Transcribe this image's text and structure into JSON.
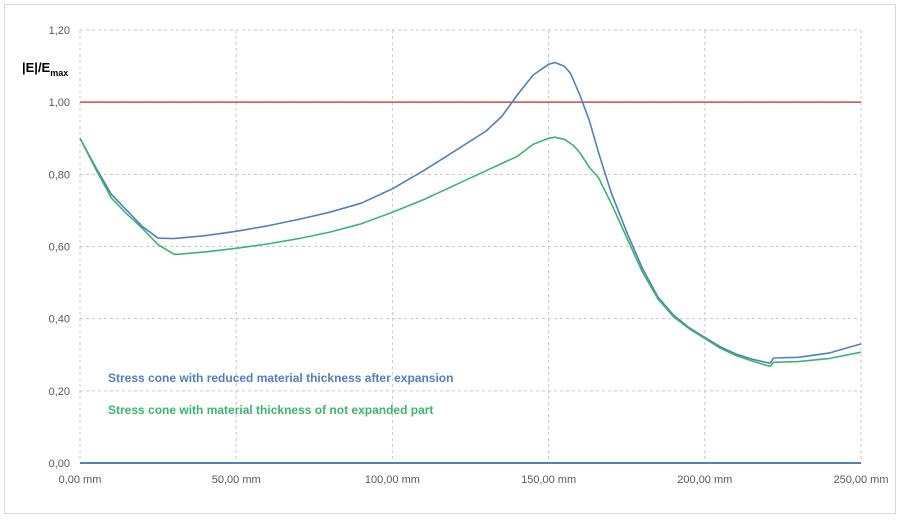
{
  "chart_data": {
    "type": "line",
    "title": "",
    "xlabel": "",
    "ylabel_main": "|E|/E",
    "ylabel_sub": "max",
    "xlim": [
      0,
      250
    ],
    "ylim": [
      0,
      1.2
    ],
    "x_ticks": [
      0,
      50,
      100,
      150,
      200,
      250
    ],
    "x_tick_labels": [
      "0,00 mm",
      "50,00 mm",
      "100,00 mm",
      "150,00 mm",
      "200,00 mm",
      "250,00 mm"
    ],
    "y_ticks": [
      0,
      0.2,
      0.4,
      0.6,
      0.8,
      1.0,
      1.2
    ],
    "y_tick_labels": [
      "0,00",
      "0,20",
      "0,40",
      "0,60",
      "0,80",
      "1,00",
      "1,20"
    ],
    "grid": "dashed",
    "reference_line": {
      "y": 1.0,
      "color": "#c0504d"
    },
    "baseline": {
      "y": 0.0,
      "color": "#4f81bd"
    },
    "legend_placement": "lower-left inside plot",
    "series": [
      {
        "name": "Stress cone with reduced material thickness after expansion",
        "color": "#4f81bd",
        "points": [
          [
            0,
            0.9
          ],
          [
            5,
            0.82
          ],
          [
            10,
            0.745
          ],
          [
            15,
            0.7
          ],
          [
            20,
            0.655
          ],
          [
            25,
            0.623
          ],
          [
            30,
            0.622
          ],
          [
            40,
            0.63
          ],
          [
            50,
            0.642
          ],
          [
            60,
            0.657
          ],
          [
            70,
            0.675
          ],
          [
            80,
            0.695
          ],
          [
            90,
            0.72
          ],
          [
            100,
            0.76
          ],
          [
            110,
            0.81
          ],
          [
            120,
            0.865
          ],
          [
            130,
            0.92
          ],
          [
            135,
            0.96
          ],
          [
            140,
            1.02
          ],
          [
            145,
            1.075
          ],
          [
            150,
            1.105
          ],
          [
            152,
            1.11
          ],
          [
            155,
            1.1
          ],
          [
            157,
            1.08
          ],
          [
            160,
            1.02
          ],
          [
            163,
            0.95
          ],
          [
            166,
            0.86
          ],
          [
            170,
            0.75
          ],
          [
            175,
            0.64
          ],
          [
            180,
            0.54
          ],
          [
            185,
            0.46
          ],
          [
            190,
            0.41
          ],
          [
            195,
            0.375
          ],
          [
            200,
            0.348
          ],
          [
            205,
            0.322
          ],
          [
            210,
            0.302
          ],
          [
            215,
            0.288
          ],
          [
            220,
            0.278
          ],
          [
            221,
            0.277
          ],
          [
            222,
            0.291
          ],
          [
            230,
            0.293
          ],
          [
            240,
            0.305
          ],
          [
            250,
            0.33
          ]
        ]
      },
      {
        "name": "Stress cone with material thickness of not expanded part",
        "color": "#3db56e",
        "points": [
          [
            0,
            0.9
          ],
          [
            5,
            0.815
          ],
          [
            10,
            0.735
          ],
          [
            15,
            0.69
          ],
          [
            20,
            0.65
          ],
          [
            25,
            0.605
          ],
          [
            30,
            0.579
          ],
          [
            31,
            0.578
          ],
          [
            40,
            0.585
          ],
          [
            50,
            0.595
          ],
          [
            60,
            0.607
          ],
          [
            70,
            0.622
          ],
          [
            80,
            0.64
          ],
          [
            90,
            0.663
          ],
          [
            100,
            0.695
          ],
          [
            110,
            0.73
          ],
          [
            120,
            0.77
          ],
          [
            130,
            0.81
          ],
          [
            135,
            0.83
          ],
          [
            140,
            0.85
          ],
          [
            145,
            0.883
          ],
          [
            150,
            0.9
          ],
          [
            152,
            0.903
          ],
          [
            155,
            0.897
          ],
          [
            158,
            0.88
          ],
          [
            160,
            0.86
          ],
          [
            163,
            0.82
          ],
          [
            166,
            0.79
          ],
          [
            170,
            0.72
          ],
          [
            175,
            0.625
          ],
          [
            180,
            0.53
          ],
          [
            185,
            0.455
          ],
          [
            190,
            0.405
          ],
          [
            195,
            0.372
          ],
          [
            200,
            0.345
          ],
          [
            205,
            0.318
          ],
          [
            210,
            0.298
          ],
          [
            215,
            0.283
          ],
          [
            220,
            0.27
          ],
          [
            221,
            0.268
          ],
          [
            222,
            0.279
          ],
          [
            230,
            0.281
          ],
          [
            240,
            0.29
          ],
          [
            250,
            0.307
          ]
        ]
      }
    ]
  }
}
